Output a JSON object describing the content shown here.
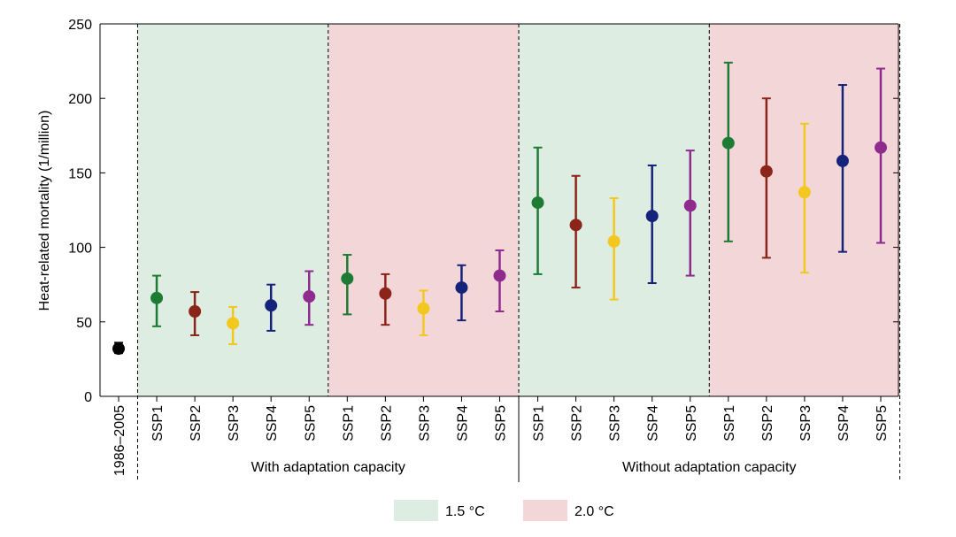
{
  "chart_data": {
    "type": "scatter",
    "subtype": "point-with-error-bars",
    "ylabel": "Heat-related mortality (1/million)",
    "ylim": [
      0,
      250
    ],
    "yticks": [
      0,
      50,
      100,
      150,
      200,
      250
    ],
    "colors": {
      "SSP1": "#1e7b34",
      "SSP2": "#8b2419",
      "SSP3": "#f2c81e",
      "SSP4": "#16237a",
      "SSP5": "#8f2a8f",
      "baseline": "#000000",
      "bg_15": "#deede2",
      "bg_20": "#f3d6d8"
    },
    "groups": [
      {
        "label": "With adaptation capacity"
      },
      {
        "label": "Without adaptation capacity"
      }
    ],
    "legend": [
      {
        "label": "1.5 °C",
        "color": "#deede2"
      },
      {
        "label": "2.0 °C",
        "color": "#f3d6d8"
      }
    ],
    "points": [
      {
        "category": "1986–2005",
        "series": "baseline",
        "value": 32,
        "low": 29,
        "high": 36
      },
      {
        "category": "SSP1",
        "series": "SSP1",
        "scenario": "1.5 °C",
        "group": "With adaptation capacity",
        "value": 66,
        "low": 47,
        "high": 81
      },
      {
        "category": "SSP2",
        "series": "SSP2",
        "scenario": "1.5 °C",
        "group": "With adaptation capacity",
        "value": 57,
        "low": 41,
        "high": 70
      },
      {
        "category": "SSP3",
        "series": "SSP3",
        "scenario": "1.5 °C",
        "group": "With adaptation capacity",
        "value": 49,
        "low": 35,
        "high": 60
      },
      {
        "category": "SSP4",
        "series": "SSP4",
        "scenario": "1.5 °C",
        "group": "With adaptation capacity",
        "value": 61,
        "low": 44,
        "high": 75
      },
      {
        "category": "SSP5",
        "series": "SSP5",
        "scenario": "1.5 °C",
        "group": "With adaptation capacity",
        "value": 67,
        "low": 48,
        "high": 84
      },
      {
        "category": "SSP1",
        "series": "SSP1",
        "scenario": "2.0 °C",
        "group": "With adaptation capacity",
        "value": 79,
        "low": 55,
        "high": 95
      },
      {
        "category": "SSP2",
        "series": "SSP2",
        "scenario": "2.0 °C",
        "group": "With adaptation capacity",
        "value": 69,
        "low": 48,
        "high": 82
      },
      {
        "category": "SSP3",
        "series": "SSP3",
        "scenario": "2.0 °C",
        "group": "With adaptation capacity",
        "value": 59,
        "low": 41,
        "high": 71
      },
      {
        "category": "SSP4",
        "series": "SSP4",
        "scenario": "2.0 °C",
        "group": "With adaptation capacity",
        "value": 73,
        "low": 51,
        "high": 88
      },
      {
        "category": "SSP5",
        "series": "SSP5",
        "scenario": "2.0 °C",
        "group": "With adaptation capacity",
        "value": 81,
        "low": 57,
        "high": 98
      },
      {
        "category": "SSP1",
        "series": "SSP1",
        "scenario": "1.5 °C",
        "group": "Without adaptation capacity",
        "value": 130,
        "low": 82,
        "high": 167
      },
      {
        "category": "SSP2",
        "series": "SSP2",
        "scenario": "1.5 °C",
        "group": "Without adaptation capacity",
        "value": 115,
        "low": 73,
        "high": 148
      },
      {
        "category": "SSP3",
        "series": "SSP3",
        "scenario": "1.5 °C",
        "group": "Without adaptation capacity",
        "value": 104,
        "low": 65,
        "high": 133
      },
      {
        "category": "SSP4",
        "series": "SSP4",
        "scenario": "1.5 °C",
        "group": "Without adaptation capacity",
        "value": 121,
        "low": 76,
        "high": 155
      },
      {
        "category": "SSP5",
        "series": "SSP5",
        "scenario": "1.5 °C",
        "group": "Without adaptation capacity",
        "value": 128,
        "low": 81,
        "high": 165
      },
      {
        "category": "SSP1",
        "series": "SSP1",
        "scenario": "2.0 °C",
        "group": "Without adaptation capacity",
        "value": 170,
        "low": 104,
        "high": 224
      },
      {
        "category": "SSP2",
        "series": "SSP2",
        "scenario": "2.0 °C",
        "group": "Without adaptation capacity",
        "value": 151,
        "low": 93,
        "high": 200
      },
      {
        "category": "SSP3",
        "series": "SSP3",
        "scenario": "2.0 °C",
        "group": "Without adaptation capacity",
        "value": 137,
        "low": 83,
        "high": 183
      },
      {
        "category": "SSP4",
        "series": "SSP4",
        "scenario": "2.0 °C",
        "group": "Without adaptation capacity",
        "value": 158,
        "low": 97,
        "high": 209
      },
      {
        "category": "SSP5",
        "series": "SSP5",
        "scenario": "2.0 °C",
        "group": "Without adaptation capacity",
        "value": 167,
        "low": 103,
        "high": 220
      }
    ]
  }
}
